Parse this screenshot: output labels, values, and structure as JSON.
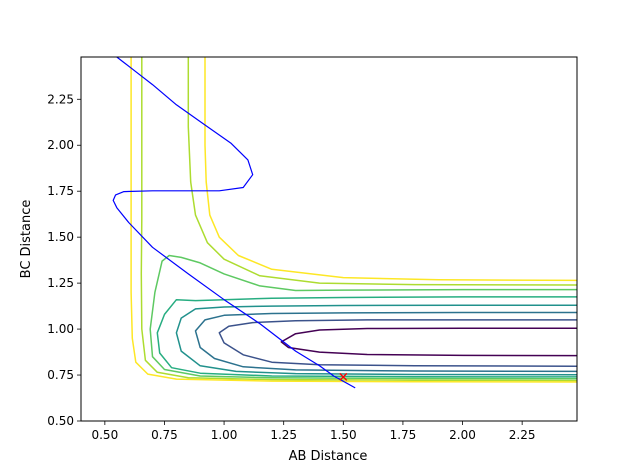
{
  "chart_data": {
    "type": "contour",
    "title": "",
    "xlabel": "AB Distance",
    "ylabel": "BC Distance",
    "xlim": [
      0.4,
      2.48
    ],
    "ylim": [
      0.5,
      2.48
    ],
    "xticks": [
      0.5,
      0.75,
      1.0,
      1.25,
      1.5,
      1.75,
      2.0,
      2.25
    ],
    "xtick_labels": [
      "0.50",
      "0.75",
      "1.00",
      "1.25",
      "1.50",
      "1.75",
      "2.00",
      "2.25"
    ],
    "yticks": [
      0.5,
      0.75,
      1.0,
      1.25,
      1.5,
      1.75,
      2.0,
      2.25
    ],
    "ytick_labels": [
      "0.50",
      "0.75",
      "1.00",
      "1.25",
      "1.50",
      "1.75",
      "2.00",
      "2.25"
    ],
    "grid": false,
    "contours": [
      {
        "color": "#440154",
        "points": [
          [
            2.48,
            1.005
          ],
          [
            2.0,
            1.005
          ],
          [
            1.6,
            1.003
          ],
          [
            1.4,
            0.995
          ],
          [
            1.3,
            0.975
          ],
          [
            1.24,
            0.93
          ],
          [
            1.27,
            0.9
          ],
          [
            1.4,
            0.875
          ],
          [
            1.6,
            0.862
          ],
          [
            2.0,
            0.857
          ],
          [
            2.48,
            0.856
          ]
        ]
      },
      {
        "color": "#3b528b",
        "points": [
          [
            2.48,
            1.05
          ],
          [
            2.0,
            1.05
          ],
          [
            1.6,
            1.05
          ],
          [
            1.3,
            1.045
          ],
          [
            1.12,
            1.035
          ],
          [
            1.02,
            1.015
          ],
          [
            0.98,
            0.98
          ],
          [
            1.0,
            0.925
          ],
          [
            1.08,
            0.86
          ],
          [
            1.2,
            0.82
          ],
          [
            1.4,
            0.806
          ],
          [
            1.8,
            0.8
          ],
          [
            2.48,
            0.798
          ]
        ]
      },
      {
        "color": "#2c728e",
        "points": [
          [
            2.48,
            1.09
          ],
          [
            2.0,
            1.09
          ],
          [
            1.5,
            1.088
          ],
          [
            1.2,
            1.085
          ],
          [
            1.0,
            1.075
          ],
          [
            0.92,
            1.05
          ],
          [
            0.88,
            0.99
          ],
          [
            0.9,
            0.9
          ],
          [
            0.96,
            0.84
          ],
          [
            1.08,
            0.795
          ],
          [
            1.3,
            0.778
          ],
          [
            1.8,
            0.772
          ],
          [
            2.48,
            0.77
          ]
        ]
      },
      {
        "color": "#21918c",
        "points": [
          [
            2.48,
            1.13
          ],
          [
            2.0,
            1.13
          ],
          [
            1.5,
            1.128
          ],
          [
            1.2,
            1.125
          ],
          [
            1.0,
            1.12
          ],
          [
            0.88,
            1.11
          ],
          [
            0.82,
            1.06
          ],
          [
            0.8,
            0.98
          ],
          [
            0.82,
            0.88
          ],
          [
            0.9,
            0.8
          ],
          [
            1.05,
            0.77
          ],
          [
            1.3,
            0.758
          ],
          [
            1.8,
            0.753
          ],
          [
            2.48,
            0.752
          ]
        ]
      },
      {
        "color": "#27ad81",
        "points": [
          [
            2.48,
            1.175
          ],
          [
            2.0,
            1.175
          ],
          [
            1.5,
            1.172
          ],
          [
            1.2,
            1.168
          ],
          [
            1.0,
            1.16
          ],
          [
            0.88,
            1.155
          ],
          [
            0.8,
            1.16
          ],
          [
            0.75,
            1.08
          ],
          [
            0.72,
            0.98
          ],
          [
            0.73,
            0.87
          ],
          [
            0.78,
            0.79
          ],
          [
            0.9,
            0.76
          ],
          [
            1.2,
            0.745
          ],
          [
            1.8,
            0.741
          ],
          [
            2.48,
            0.74
          ]
        ]
      },
      {
        "color": "#5ec962",
        "points": [
          [
            2.48,
            1.215
          ],
          [
            2.0,
            1.215
          ],
          [
            1.5,
            1.212
          ],
          [
            1.3,
            1.21
          ],
          [
            1.15,
            1.235
          ],
          [
            1.0,
            1.3
          ],
          [
            0.9,
            1.36
          ],
          [
            0.82,
            1.39
          ],
          [
            0.77,
            1.4
          ],
          [
            0.74,
            1.37
          ],
          [
            0.71,
            1.2
          ],
          [
            0.69,
            1.0
          ],
          [
            0.7,
            0.85
          ],
          [
            0.75,
            0.78
          ],
          [
            0.9,
            0.745
          ],
          [
            1.2,
            0.735
          ],
          [
            1.8,
            0.731
          ],
          [
            2.48,
            0.73
          ]
        ]
      },
      {
        "color": "#addc30",
        "points": [
          [
            0.85,
            2.48
          ],
          [
            0.85,
            2.1
          ],
          [
            0.86,
            1.8
          ],
          [
            0.88,
            1.62
          ],
          [
            0.93,
            1.47
          ],
          [
            1.0,
            1.38
          ],
          [
            1.15,
            1.29
          ],
          [
            1.4,
            1.25
          ],
          [
            1.8,
            1.242
          ],
          [
            2.48,
            1.24
          ]
        ]
      },
      {
        "color": "#addc30",
        "points": [
          [
            0.655,
            2.48
          ],
          [
            0.655,
            2.0
          ],
          [
            0.655,
            1.6
          ],
          [
            0.653,
            1.3
          ],
          [
            0.655,
            1.0
          ],
          [
            0.67,
            0.83
          ],
          [
            0.72,
            0.765
          ],
          [
            0.85,
            0.735
          ],
          [
            1.2,
            0.725
          ],
          [
            1.8,
            0.722
          ],
          [
            2.48,
            0.72
          ]
        ]
      },
      {
        "color": "#fde725",
        "points": [
          [
            0.92,
            2.48
          ],
          [
            0.92,
            2.0
          ],
          [
            0.925,
            1.8
          ],
          [
            0.94,
            1.62
          ],
          [
            0.98,
            1.5
          ],
          [
            1.06,
            1.4
          ],
          [
            1.2,
            1.325
          ],
          [
            1.5,
            1.28
          ],
          [
            1.9,
            1.268
          ],
          [
            2.48,
            1.265
          ]
        ]
      },
      {
        "color": "#fde725",
        "points": [
          [
            0.61,
            2.48
          ],
          [
            0.61,
            2.0
          ],
          [
            0.61,
            1.6
          ],
          [
            0.61,
            1.2
          ],
          [
            0.615,
            0.95
          ],
          [
            0.63,
            0.82
          ],
          [
            0.68,
            0.755
          ],
          [
            0.8,
            0.728
          ],
          [
            1.2,
            0.717
          ],
          [
            1.8,
            0.713
          ],
          [
            2.48,
            0.712
          ]
        ]
      }
    ],
    "trajectory": {
      "name": "",
      "color": "#0000ff",
      "points": [
        [
          1.55,
          0.68
        ],
        [
          1.46,
          0.745
        ],
        [
          1.4,
          0.8
        ],
        [
          1.3,
          0.88
        ],
        [
          1.15,
          1.03
        ],
        [
          1.0,
          1.16
        ],
        [
          0.85,
          1.3
        ],
        [
          0.7,
          1.445
        ],
        [
          0.6,
          1.58
        ],
        [
          0.55,
          1.66
        ],
        [
          0.535,
          1.7
        ],
        [
          0.545,
          1.73
        ],
        [
          0.58,
          1.748
        ],
        [
          0.7,
          1.752
        ],
        [
          0.85,
          1.752
        ],
        [
          0.98,
          1.752
        ],
        [
          1.08,
          1.77
        ],
        [
          1.12,
          1.84
        ],
        [
          1.1,
          1.92
        ],
        [
          1.03,
          2.01
        ],
        [
          0.92,
          2.11
        ],
        [
          0.8,
          2.22
        ],
        [
          0.7,
          2.33
        ],
        [
          0.63,
          2.4
        ],
        [
          0.58,
          2.45
        ],
        [
          0.55,
          2.48
        ]
      ]
    },
    "markers": [
      {
        "type": "x",
        "color": "#ff0000",
        "x": 1.5,
        "y": 0.74
      }
    ]
  }
}
